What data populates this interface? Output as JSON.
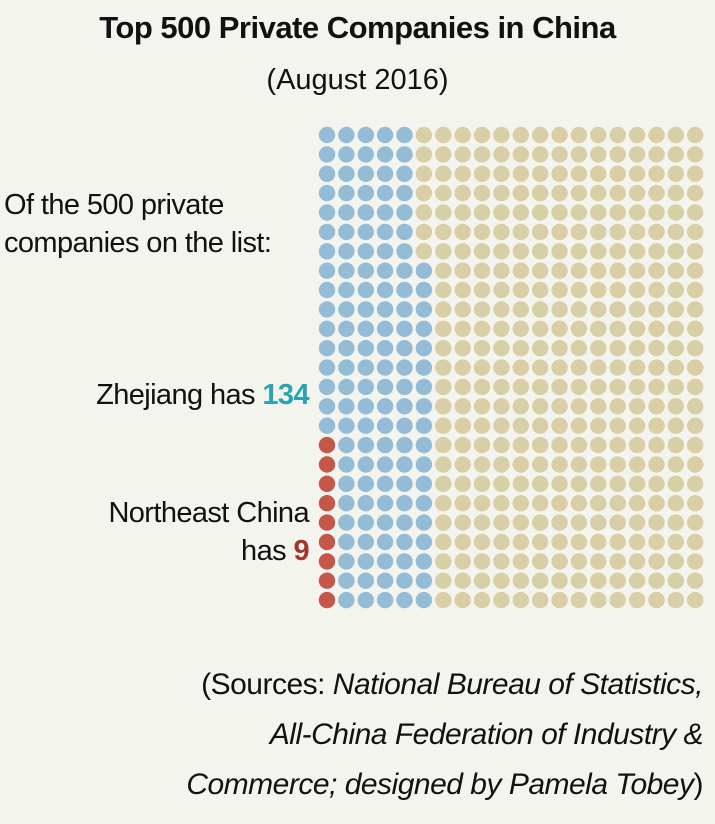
{
  "title": "Top 500 Private Companies in China",
  "subtitle": "(August 2016)",
  "intro": {
    "line1": "Of the 500 private",
    "line2": "companies on the list:"
  },
  "zhejiang": {
    "label": "Zhejiang has ",
    "value_text": "134"
  },
  "northeast": {
    "line1": "Northeast China",
    "line2_prefix": "has ",
    "value_text": "9"
  },
  "sources": {
    "prefix": "(Sources: ",
    "italic1": "National Bureau of Statistics,",
    "italic2": "All-China Federation of Industry &",
    "italic3": "Commerce; designed by Pamela Tobey",
    "suffix": ")"
  },
  "colors": {
    "background": "#f4f4ef",
    "other": "#d8cfa6",
    "zhejiang": "#94bcd6",
    "northeast": "#c4564a",
    "zhejiang_number": "#2aa3b4",
    "northeast_number": "#a5352a"
  },
  "chart_data": {
    "type": "waffle",
    "total": 500,
    "columns": 20,
    "rows": 25,
    "series": [
      {
        "name": "Zhejiang",
        "value": 134
      },
      {
        "name": "Northeast China",
        "value": 9
      }
    ]
  }
}
